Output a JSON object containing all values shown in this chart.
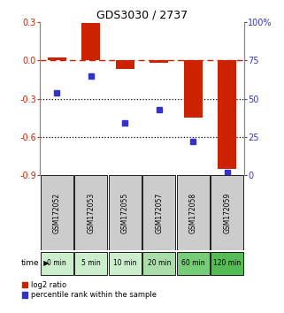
{
  "title": "GDS3030 / 2737",
  "samples": [
    "GSM172052",
    "GSM172053",
    "GSM172055",
    "GSM172057",
    "GSM172058",
    "GSM172059"
  ],
  "time_labels": [
    "0 min",
    "5 min",
    "10 min",
    "20 min",
    "60 min",
    "120 min"
  ],
  "log2_ratio": [
    0.02,
    0.29,
    -0.07,
    -0.02,
    -0.45,
    -0.85
  ],
  "percentile_rank": [
    54,
    65,
    34,
    43,
    22,
    2
  ],
  "ylim_left": [
    -0.9,
    0.3
  ],
  "ylim_right": [
    0,
    100
  ],
  "yticks_left": [
    0.3,
    0.0,
    -0.3,
    -0.6,
    -0.9
  ],
  "yticks_right": [
    100,
    75,
    50,
    25,
    0
  ],
  "bar_color": "#cc2200",
  "dot_color": "#3333cc",
  "dotted_lines": [
    -0.3,
    -0.6
  ],
  "background_color": "#ffffff",
  "bar_width": 0.55,
  "legend_red": "log2 ratio",
  "legend_blue": "percentile rank within the sample",
  "gray_color": "#cccccc",
  "time_row_greens": [
    "#cceecc",
    "#cceecc",
    "#cceecc",
    "#aaddaa",
    "#77cc77",
    "#55bb55"
  ]
}
